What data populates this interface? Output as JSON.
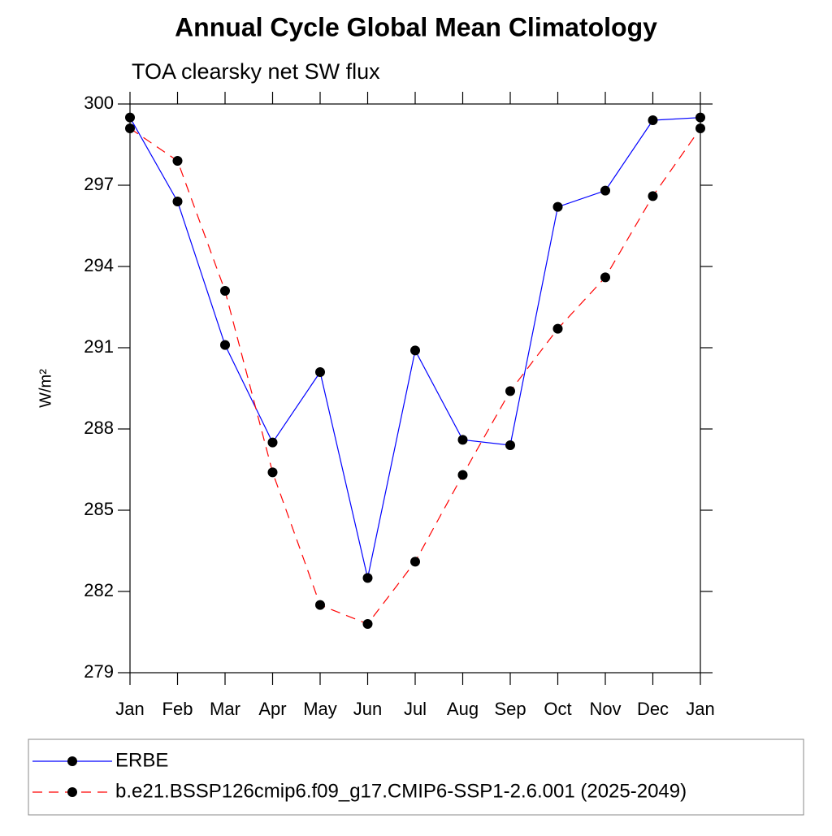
{
  "chart_data": {
    "type": "line",
    "title": "Annual Cycle Global Mean Climatology",
    "subtitle": "TOA clearsky net SW flux",
    "y_label": "W/m²",
    "categories": [
      "Jan",
      "Feb",
      "Mar",
      "Apr",
      "May",
      "Jun",
      "Jul",
      "Aug",
      "Sep",
      "Oct",
      "Nov",
      "Dec",
      "Jan"
    ],
    "ylim": [
      279,
      300
    ],
    "yticks": [
      279,
      282,
      285,
      288,
      291,
      294,
      297,
      300
    ],
    "series": [
      {
        "name": "ERBE",
        "color": "#0000ff",
        "line_style": "solid",
        "marker_color": "#000000",
        "values": [
          299.5,
          296.4,
          291.1,
          287.5,
          290.1,
          282.5,
          290.9,
          287.6,
          287.4,
          296.2,
          296.8,
          299.4,
          299.5
        ]
      },
      {
        "name": "b.e21.BSSP126cmip6.f09_g17.CMIP6-SSP1-2.6.001 (2025-2049)",
        "color": "#ff0000",
        "line_style": "dashed",
        "marker_color": "#000000",
        "values": [
          299.1,
          297.9,
          293.1,
          286.4,
          281.5,
          280.8,
          283.1,
          286.3,
          289.4,
          291.7,
          293.6,
          296.6,
          299.1
        ]
      }
    ]
  }
}
